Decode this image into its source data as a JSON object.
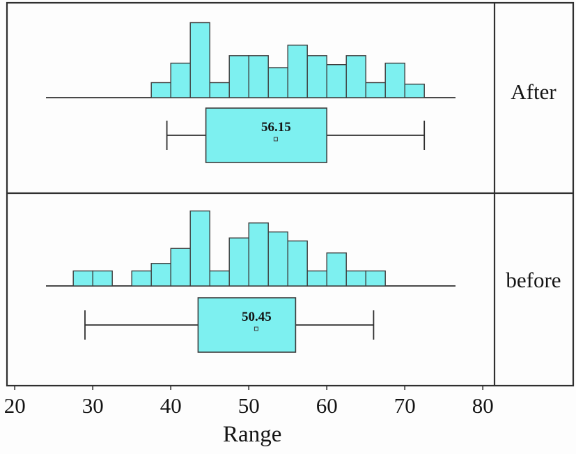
{
  "figure": {
    "kind": "stacked histogram with box plots",
    "background": "#fdfdfd"
  },
  "colors": {
    "bar_fill": "#7df0f0",
    "bar_stroke": "#3d3d3d",
    "line": "#2f2f2f",
    "text": "#141414"
  },
  "chart_data": {
    "type": "bar",
    "subtype": "histogram-with-boxplot",
    "title": "",
    "xlabel": "Range",
    "ylabel": "",
    "x_ticks": [
      20,
      30,
      40,
      50,
      60,
      70,
      80
    ],
    "xlim": [
      19,
      81.5
    ],
    "grid": false,
    "legend": "none",
    "panels": [
      {
        "label": "After",
        "bin_start": 37.5,
        "bin_width": 2.5,
        "frequencies": [
          1,
          2.3,
          5,
          1,
          2.8,
          2.8,
          2,
          3.5,
          2.8,
          2.2,
          2.8,
          1,
          2.3,
          0.9
        ],
        "boxplot": {
          "whisker_low": 39.5,
          "q1": 44.5,
          "q3": 60,
          "whisker_high": 72.5,
          "mean": 56.15,
          "mean_label": "56.15"
        }
      },
      {
        "label": "before",
        "bin_start": 27.5,
        "bin_width": 2.5,
        "frequencies": [
          1,
          1,
          0,
          1,
          1.5,
          2.5,
          5,
          1,
          3.2,
          4.2,
          3.6,
          3,
          1,
          2.2,
          1,
          1
        ],
        "boxplot": {
          "whisker_low": 29,
          "q1": 43.5,
          "q3": 56,
          "whisker_high": 66,
          "mean": 50.45,
          "mean_label": "50.45"
        }
      }
    ]
  }
}
